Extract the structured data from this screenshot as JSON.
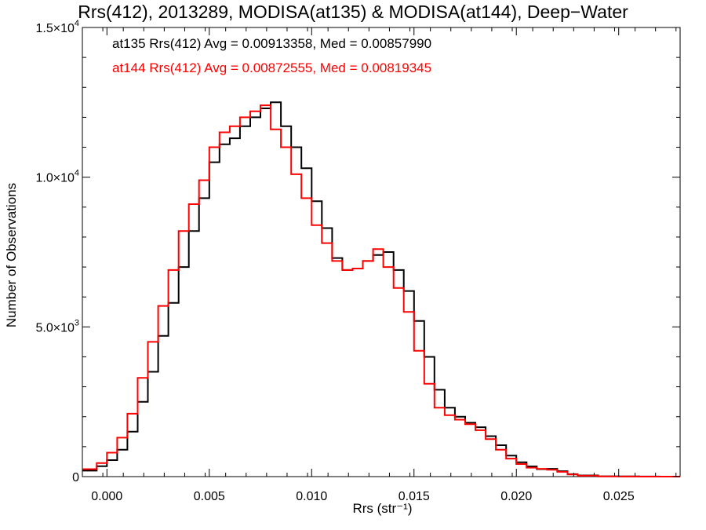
{
  "chart_data": {
    "type": "line",
    "title": "Rrs(412), 2013289, MODISA(at135) & MODISA(at144), Deep−Water",
    "xlabel": "Rrs (str⁻¹)",
    "ylabel": "Number of Observations",
    "xlim": [
      -0.0012,
      0.028
    ],
    "ylim": [
      0,
      15000
    ],
    "x_ticks": [
      0.0,
      0.005,
      0.01,
      0.015,
      0.02,
      0.025
    ],
    "x_tick_labels": [
      "0.000",
      "0.005",
      "0.010",
      "0.015",
      "0.020",
      "0.025"
    ],
    "y_ticks": [
      0,
      5000,
      10000,
      15000
    ],
    "y_tick_labels": [
      {
        "mantissa": "0",
        "exp": ""
      },
      {
        "mantissa": "5.0×10",
        "exp": "3"
      },
      {
        "mantissa": "1.0×10",
        "exp": "4"
      },
      {
        "mantissa": "1.5×10",
        "exp": "4"
      }
    ],
    "grid": false,
    "stats": [
      {
        "text": "at135 Rrs(412) Avg = 0.00913358, Med = 0.00857990",
        "color": "#000000"
      },
      {
        "text": "at144 Rrs(412) Avg = 0.00872555, Med = 0.00819345",
        "color": "#ff0000"
      }
    ],
    "series": [
      {
        "color": "#000000",
        "x": [
          -0.0012,
          -0.0005,
          0.0,
          0.0005,
          0.001,
          0.0015,
          0.002,
          0.0025,
          0.003,
          0.0035,
          0.004,
          0.0045,
          0.005,
          0.0055,
          0.006,
          0.0065,
          0.007,
          0.0075,
          0.008,
          0.0085,
          0.009,
          0.0095,
          0.01,
          0.0105,
          0.011,
          0.0115,
          0.012,
          0.0125,
          0.013,
          0.0135,
          0.014,
          0.0145,
          0.015,
          0.0155,
          0.016,
          0.0165,
          0.017,
          0.0175,
          0.018,
          0.0185,
          0.019,
          0.0195,
          0.02,
          0.0205,
          0.021,
          0.0215,
          0.022,
          0.0225,
          0.023,
          0.024,
          0.025,
          0.026,
          0.027,
          0.028
        ],
        "y": [
          200,
          350,
          550,
          900,
          1500,
          2500,
          3500,
          4700,
          5800,
          7000,
          8200,
          9300,
          10500,
          11100,
          11300,
          11700,
          12000,
          12300,
          12500,
          11700,
          11000,
          10300,
          9200,
          8300,
          7300,
          6900,
          6950,
          7200,
          7400,
          7500,
          6900,
          6200,
          5200,
          4000,
          2900,
          2300,
          2000,
          1800,
          1650,
          1350,
          1050,
          700,
          480,
          340,
          250,
          260,
          180,
          80,
          40,
          10,
          5,
          2,
          0,
          0
        ]
      },
      {
        "color": "#ff0000",
        "x": [
          -0.0012,
          -0.0005,
          0.0,
          0.0005,
          0.001,
          0.0015,
          0.002,
          0.0025,
          0.003,
          0.0035,
          0.004,
          0.0045,
          0.005,
          0.0055,
          0.006,
          0.0065,
          0.007,
          0.0075,
          0.008,
          0.0085,
          0.009,
          0.0095,
          0.01,
          0.0105,
          0.011,
          0.0115,
          0.012,
          0.0125,
          0.013,
          0.0135,
          0.014,
          0.0145,
          0.015,
          0.0155,
          0.016,
          0.0165,
          0.017,
          0.0175,
          0.018,
          0.0185,
          0.019,
          0.0195,
          0.02,
          0.0205,
          0.021,
          0.0215,
          0.022,
          0.0225,
          0.023,
          0.024,
          0.025,
          0.026,
          0.027,
          0.028
        ],
        "y": [
          250,
          450,
          800,
          1300,
          2100,
          3300,
          4500,
          5700,
          6900,
          8200,
          9100,
          9900,
          11000,
          11500,
          11700,
          12000,
          12200,
          12400,
          11600,
          11000,
          10100,
          9300,
          8400,
          7800,
          7200,
          6900,
          6950,
          7200,
          7600,
          7000,
          6300,
          5500,
          4200,
          3100,
          2300,
          2050,
          1900,
          1750,
          1550,
          1250,
          900,
          600,
          420,
          300,
          260,
          230,
          160,
          70,
          30,
          8,
          3,
          1,
          0,
          0
        ]
      }
    ]
  }
}
